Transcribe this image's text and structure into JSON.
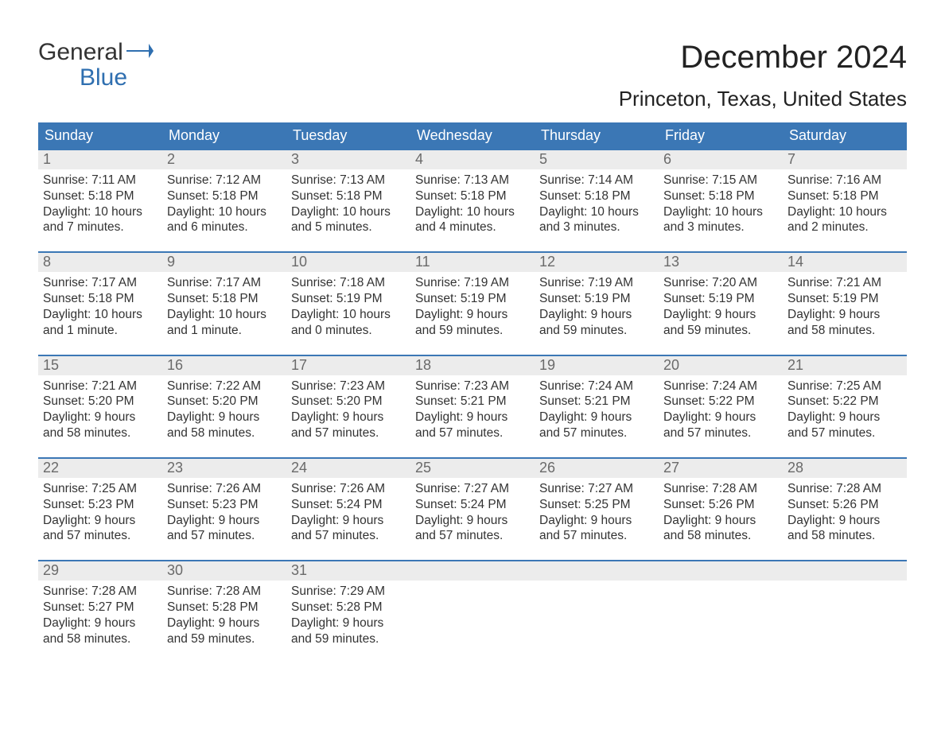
{
  "brand": {
    "word1": "General",
    "word2": "Blue",
    "text_color": "#333333",
    "accent_color": "#2f6fb0"
  },
  "title": "December 2024",
  "location": "Princeton, Texas, United States",
  "colors": {
    "header_bg": "#3b77b5",
    "header_text": "#ffffff",
    "daynum_bg": "#ececec",
    "daynum_text": "#6a6a6a",
    "body_text": "#333333",
    "week_border": "#3b77b5",
    "page_bg": "#ffffff"
  },
  "typography": {
    "month_title_size": 40,
    "location_size": 26,
    "weekday_size": 18,
    "daynum_size": 18,
    "cell_size": 15.5,
    "logo_size": 30
  },
  "weekdays": [
    "Sunday",
    "Monday",
    "Tuesday",
    "Wednesday",
    "Thursday",
    "Friday",
    "Saturday"
  ],
  "weeks": [
    [
      {
        "n": "1",
        "sr": "Sunrise: 7:11 AM",
        "ss": "Sunset: 5:18 PM",
        "d1": "Daylight: 10 hours",
        "d2": "and 7 minutes."
      },
      {
        "n": "2",
        "sr": "Sunrise: 7:12 AM",
        "ss": "Sunset: 5:18 PM",
        "d1": "Daylight: 10 hours",
        "d2": "and 6 minutes."
      },
      {
        "n": "3",
        "sr": "Sunrise: 7:13 AM",
        "ss": "Sunset: 5:18 PM",
        "d1": "Daylight: 10 hours",
        "d2": "and 5 minutes."
      },
      {
        "n": "4",
        "sr": "Sunrise: 7:13 AM",
        "ss": "Sunset: 5:18 PM",
        "d1": "Daylight: 10 hours",
        "d2": "and 4 minutes."
      },
      {
        "n": "5",
        "sr": "Sunrise: 7:14 AM",
        "ss": "Sunset: 5:18 PM",
        "d1": "Daylight: 10 hours",
        "d2": "and 3 minutes."
      },
      {
        "n": "6",
        "sr": "Sunrise: 7:15 AM",
        "ss": "Sunset: 5:18 PM",
        "d1": "Daylight: 10 hours",
        "d2": "and 3 minutes."
      },
      {
        "n": "7",
        "sr": "Sunrise: 7:16 AM",
        "ss": "Sunset: 5:18 PM",
        "d1": "Daylight: 10 hours",
        "d2": "and 2 minutes."
      }
    ],
    [
      {
        "n": "8",
        "sr": "Sunrise: 7:17 AM",
        "ss": "Sunset: 5:18 PM",
        "d1": "Daylight: 10 hours",
        "d2": "and 1 minute."
      },
      {
        "n": "9",
        "sr": "Sunrise: 7:17 AM",
        "ss": "Sunset: 5:18 PM",
        "d1": "Daylight: 10 hours",
        "d2": "and 1 minute."
      },
      {
        "n": "10",
        "sr": "Sunrise: 7:18 AM",
        "ss": "Sunset: 5:19 PM",
        "d1": "Daylight: 10 hours",
        "d2": "and 0 minutes."
      },
      {
        "n": "11",
        "sr": "Sunrise: 7:19 AM",
        "ss": "Sunset: 5:19 PM",
        "d1": "Daylight: 9 hours",
        "d2": "and 59 minutes."
      },
      {
        "n": "12",
        "sr": "Sunrise: 7:19 AM",
        "ss": "Sunset: 5:19 PM",
        "d1": "Daylight: 9 hours",
        "d2": "and 59 minutes."
      },
      {
        "n": "13",
        "sr": "Sunrise: 7:20 AM",
        "ss": "Sunset: 5:19 PM",
        "d1": "Daylight: 9 hours",
        "d2": "and 59 minutes."
      },
      {
        "n": "14",
        "sr": "Sunrise: 7:21 AM",
        "ss": "Sunset: 5:19 PM",
        "d1": "Daylight: 9 hours",
        "d2": "and 58 minutes."
      }
    ],
    [
      {
        "n": "15",
        "sr": "Sunrise: 7:21 AM",
        "ss": "Sunset: 5:20 PM",
        "d1": "Daylight: 9 hours",
        "d2": "and 58 minutes."
      },
      {
        "n": "16",
        "sr": "Sunrise: 7:22 AM",
        "ss": "Sunset: 5:20 PM",
        "d1": "Daylight: 9 hours",
        "d2": "and 58 minutes."
      },
      {
        "n": "17",
        "sr": "Sunrise: 7:23 AM",
        "ss": "Sunset: 5:20 PM",
        "d1": "Daylight: 9 hours",
        "d2": "and 57 minutes."
      },
      {
        "n": "18",
        "sr": "Sunrise: 7:23 AM",
        "ss": "Sunset: 5:21 PM",
        "d1": "Daylight: 9 hours",
        "d2": "and 57 minutes."
      },
      {
        "n": "19",
        "sr": "Sunrise: 7:24 AM",
        "ss": "Sunset: 5:21 PM",
        "d1": "Daylight: 9 hours",
        "d2": "and 57 minutes."
      },
      {
        "n": "20",
        "sr": "Sunrise: 7:24 AM",
        "ss": "Sunset: 5:22 PM",
        "d1": "Daylight: 9 hours",
        "d2": "and 57 minutes."
      },
      {
        "n": "21",
        "sr": "Sunrise: 7:25 AM",
        "ss": "Sunset: 5:22 PM",
        "d1": "Daylight: 9 hours",
        "d2": "and 57 minutes."
      }
    ],
    [
      {
        "n": "22",
        "sr": "Sunrise: 7:25 AM",
        "ss": "Sunset: 5:23 PM",
        "d1": "Daylight: 9 hours",
        "d2": "and 57 minutes."
      },
      {
        "n": "23",
        "sr": "Sunrise: 7:26 AM",
        "ss": "Sunset: 5:23 PM",
        "d1": "Daylight: 9 hours",
        "d2": "and 57 minutes."
      },
      {
        "n": "24",
        "sr": "Sunrise: 7:26 AM",
        "ss": "Sunset: 5:24 PM",
        "d1": "Daylight: 9 hours",
        "d2": "and 57 minutes."
      },
      {
        "n": "25",
        "sr": "Sunrise: 7:27 AM",
        "ss": "Sunset: 5:24 PM",
        "d1": "Daylight: 9 hours",
        "d2": "and 57 minutes."
      },
      {
        "n": "26",
        "sr": "Sunrise: 7:27 AM",
        "ss": "Sunset: 5:25 PM",
        "d1": "Daylight: 9 hours",
        "d2": "and 57 minutes."
      },
      {
        "n": "27",
        "sr": "Sunrise: 7:28 AM",
        "ss": "Sunset: 5:26 PM",
        "d1": "Daylight: 9 hours",
        "d2": "and 58 minutes."
      },
      {
        "n": "28",
        "sr": "Sunrise: 7:28 AM",
        "ss": "Sunset: 5:26 PM",
        "d1": "Daylight: 9 hours",
        "d2": "and 58 minutes."
      }
    ],
    [
      {
        "n": "29",
        "sr": "Sunrise: 7:28 AM",
        "ss": "Sunset: 5:27 PM",
        "d1": "Daylight: 9 hours",
        "d2": "and 58 minutes."
      },
      {
        "n": "30",
        "sr": "Sunrise: 7:28 AM",
        "ss": "Sunset: 5:28 PM",
        "d1": "Daylight: 9 hours",
        "d2": "and 59 minutes."
      },
      {
        "n": "31",
        "sr": "Sunrise: 7:29 AM",
        "ss": "Sunset: 5:28 PM",
        "d1": "Daylight: 9 hours",
        "d2": "and 59 minutes."
      },
      {
        "n": "",
        "sr": "",
        "ss": "",
        "d1": "",
        "d2": ""
      },
      {
        "n": "",
        "sr": "",
        "ss": "",
        "d1": "",
        "d2": ""
      },
      {
        "n": "",
        "sr": "",
        "ss": "",
        "d1": "",
        "d2": ""
      },
      {
        "n": "",
        "sr": "",
        "ss": "",
        "d1": "",
        "d2": ""
      }
    ]
  ]
}
